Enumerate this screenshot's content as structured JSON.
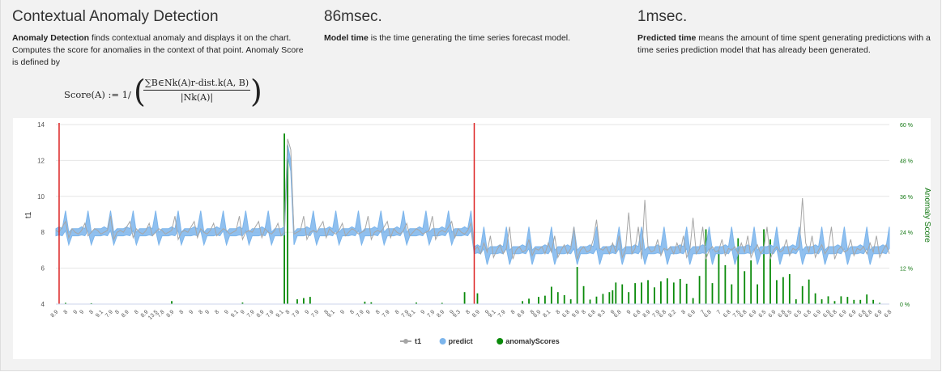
{
  "panels": [
    {
      "title": "Contextual Anomaly Detection",
      "lead": "Anomaly Detection",
      "text": " finds contextual anomaly and displays it on the chart. Computes the score for anomalies in the context of that point. Anomaly Score is defined by"
    },
    {
      "title": "86msec.",
      "lead": "Model time",
      "text": " is the time generating the time series forecast model."
    },
    {
      "title": "1msec.",
      "lead": "Predicted time",
      "text": " means the amount of time spent generating predictions with a time series prediction model that has already been generated."
    }
  ],
  "formula": {
    "lhs": "Score(A) := 1/",
    "numerator": "∑B∈Nk(A)r-dist.k(A, B)",
    "denominator": "|Nk(A)|"
  },
  "colors": {
    "t1": "#a6a6a6",
    "predict": "#7cb5ec",
    "anomaly": "#0a8a0a",
    "marker": "#dd2222",
    "axis_right": "#117711"
  },
  "chart_data": {
    "type": "line",
    "title": "",
    "ylabel": "t1",
    "ylabel_right": "Anomaly Score",
    "ylim": [
      4,
      14
    ],
    "yticks": [
      4,
      6,
      8,
      10,
      12,
      14
    ],
    "ylim_right": [
      0,
      60
    ],
    "yticks_right": [
      "0 %",
      "12 %",
      "24 %",
      "36 %",
      "48 %",
      "60 %"
    ],
    "grid": true,
    "legend_position": "bottom-center",
    "legend": [
      {
        "name": "t1",
        "color": "#a6a6a6",
        "symbol": "line-dot"
      },
      {
        "name": "predict",
        "color": "#7cb5ec",
        "symbol": "dot"
      },
      {
        "name": "anomalyScores",
        "color": "#0a8a0a",
        "symbol": "dot"
      }
    ],
    "n_points": 260,
    "vertical_markers": [
      1,
      130
    ],
    "x_tick_labels": [
      "8.9",
      "8",
      "9",
      "9",
      "8",
      "9.1",
      "7.9",
      "8",
      "8.9",
      "8",
      "8.9",
      "13.5",
      "7.8",
      "8.9",
      "8",
      "9",
      "8",
      "9",
      "8",
      "9",
      "9.1",
      "9",
      "7.9",
      "8.9",
      "7.9",
      "9.1",
      "8",
      "7.9",
      "9",
      "7.9",
      "8",
      "9.1",
      "9",
      "8",
      "7.9",
      "9",
      "8",
      "7.9",
      "8",
      "7.9",
      "9.1",
      "9",
      "7.9",
      "8.9",
      "9",
      "9.3",
      "8",
      "8.9",
      "9",
      "9.1",
      "7.9",
      "8",
      "8.9",
      "8",
      "8.9",
      "8.1",
      "8",
      "6.8",
      "9.9",
      "8",
      "6.8",
      "9.3",
      "9",
      "6.8",
      "9",
      "6.8",
      "8.9",
      "7.9",
      "6.8",
      "8.2",
      "8",
      "6.9",
      "7",
      "6.8",
      "7",
      "6.8",
      "7.5",
      "6.8",
      "6.9",
      "6.5",
      "6.9",
      "6.8",
      "6.5",
      "6.5",
      "6.8",
      "6.9",
      "6.9",
      "6.8",
      "6.9",
      "6.9",
      "6.8",
      "6.8",
      "6.9",
      "6.8"
    ],
    "series": [
      {
        "name": "t1",
        "segments": [
          {
            "from": 0,
            "to": 129,
            "baseline": 8.0,
            "pattern": [
              8.1,
              8.0,
              8.3,
              8.6,
              7.7,
              8.2,
              8.0,
              7.9,
              8.1,
              8.5,
              7.8,
              8.0,
              8.2,
              8.1,
              7.9,
              8.0,
              8.1,
              8.9,
              7.6,
              8.0
            ]
          },
          {
            "from": 130,
            "to": 259,
            "baseline": 7.0,
            "pattern": [
              7.0,
              7.2,
              6.8,
              7.4,
              6.9,
              7.8,
              6.6,
              7.0,
              7.3,
              6.8,
              7.1,
              8.3,
              6.5,
              7.0,
              7.2,
              6.9,
              7.0,
              7.6,
              6.7,
              7.1
            ]
          }
        ],
        "spikes": [
          {
            "i": 72,
            "y": 13.2
          },
          {
            "i": 73,
            "y": 12.6
          },
          {
            "i": 183,
            "y": 9.8
          },
          {
            "i": 178,
            "y": 9.1
          },
          {
            "i": 198,
            "y": 8.8
          },
          {
            "i": 232,
            "y": 9.9
          },
          {
            "i": 168,
            "y": 8.7
          }
        ]
      },
      {
        "name": "predict",
        "band": true,
        "segments": [
          {
            "from": 0,
            "to": 129,
            "low": 7.8,
            "high": 8.2,
            "peak": 9.2,
            "trough": 7.3
          },
          {
            "from": 130,
            "to": 259,
            "low": 6.8,
            "high": 7.2,
            "peak": 8.3,
            "trough": 6.2
          }
        ],
        "spikes": [
          {
            "i": 72,
            "y": 12.9
          },
          {
            "i": 73,
            "y": 12.0
          }
        ]
      },
      {
        "name": "anomalyScores",
        "axis": "right",
        "default": 0.3,
        "values": [
          {
            "i": 3,
            "y": 0.4
          },
          {
            "i": 11,
            "y": 0.3
          },
          {
            "i": 36,
            "y": 1.0
          },
          {
            "i": 58,
            "y": 0.5
          },
          {
            "i": 71,
            "y": 57.0
          },
          {
            "i": 72,
            "y": 53.0
          },
          {
            "i": 75,
            "y": 1.6
          },
          {
            "i": 77,
            "y": 2.0
          },
          {
            "i": 79,
            "y": 2.4
          },
          {
            "i": 96,
            "y": 0.8
          },
          {
            "i": 98,
            "y": 0.6
          },
          {
            "i": 131,
            "y": 3.6
          },
          {
            "i": 112,
            "y": 0.5
          },
          {
            "i": 120,
            "y": 0.4
          },
          {
            "i": 127,
            "y": 4.0
          },
          {
            "i": 145,
            "y": 1.0
          },
          {
            "i": 147,
            "y": 1.8
          },
          {
            "i": 150,
            "y": 2.4
          },
          {
            "i": 152,
            "y": 2.8
          },
          {
            "i": 154,
            "y": 5.8
          },
          {
            "i": 156,
            "y": 4.0
          },
          {
            "i": 158,
            "y": 3.0
          },
          {
            "i": 160,
            "y": 1.6
          },
          {
            "i": 162,
            "y": 12.4
          },
          {
            "i": 164,
            "y": 6.0
          },
          {
            "i": 166,
            "y": 1.5
          },
          {
            "i": 168,
            "y": 2.5
          },
          {
            "i": 170,
            "y": 3.4
          },
          {
            "i": 172,
            "y": 4.0
          },
          {
            "i": 173,
            "y": 4.6
          },
          {
            "i": 174,
            "y": 7.2
          },
          {
            "i": 176,
            "y": 6.6
          },
          {
            "i": 178,
            "y": 4.0
          },
          {
            "i": 180,
            "y": 7.0
          },
          {
            "i": 182,
            "y": 7.2
          },
          {
            "i": 184,
            "y": 8.0
          },
          {
            "i": 186,
            "y": 5.6
          },
          {
            "i": 188,
            "y": 7.6
          },
          {
            "i": 190,
            "y": 8.6
          },
          {
            "i": 192,
            "y": 7.2
          },
          {
            "i": 194,
            "y": 8.4
          },
          {
            "i": 196,
            "y": 6.8
          },
          {
            "i": 198,
            "y": 2.0
          },
          {
            "i": 200,
            "y": 9.4
          },
          {
            "i": 202,
            "y": 25.0
          },
          {
            "i": 204,
            "y": 7.0
          },
          {
            "i": 206,
            "y": 18.0
          },
          {
            "i": 208,
            "y": 13.0
          },
          {
            "i": 210,
            "y": 6.6
          },
          {
            "i": 212,
            "y": 22.0
          },
          {
            "i": 214,
            "y": 11.0
          },
          {
            "i": 216,
            "y": 14.6
          },
          {
            "i": 218,
            "y": 6.6
          },
          {
            "i": 220,
            "y": 25.0
          },
          {
            "i": 222,
            "y": 21.6
          },
          {
            "i": 224,
            "y": 8.0
          },
          {
            "i": 226,
            "y": 9.0
          },
          {
            "i": 228,
            "y": 10.0
          },
          {
            "i": 230,
            "y": 1.6
          },
          {
            "i": 232,
            "y": 6.0
          },
          {
            "i": 234,
            "y": 8.2
          },
          {
            "i": 236,
            "y": 3.6
          },
          {
            "i": 238,
            "y": 1.6
          },
          {
            "i": 240,
            "y": 2.6
          },
          {
            "i": 242,
            "y": 1.0
          },
          {
            "i": 244,
            "y": 2.6
          },
          {
            "i": 246,
            "y": 2.4
          },
          {
            "i": 248,
            "y": 1.4
          },
          {
            "i": 250,
            "y": 1.4
          },
          {
            "i": 252,
            "y": 3.2
          },
          {
            "i": 254,
            "y": 1.4
          },
          {
            "i": 256,
            "y": 0.4
          }
        ]
      }
    ]
  }
}
